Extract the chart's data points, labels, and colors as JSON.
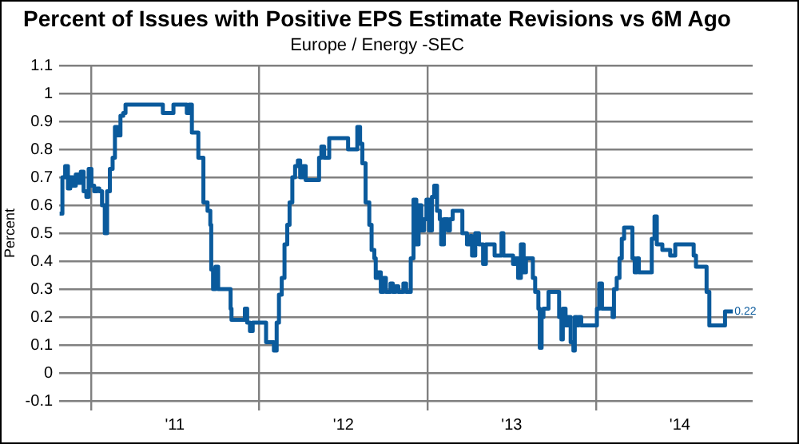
{
  "chart_data": {
    "type": "step",
    "title": "Percent of Issues with Positive EPS Estimate Revisions vs 6M Ago",
    "subtitle": "Europe / Energy -SEC",
    "ylabel": "Percent",
    "x": [
      "2010-10-25",
      "2010-10-31",
      "2010-11-06",
      "2010-11-12",
      "2010-11-17",
      "2010-11-23",
      "2010-11-29",
      "2010-12-05",
      "2010-12-10",
      "2010-12-16",
      "2010-12-22",
      "2010-12-27",
      "2011-01-02",
      "2011-01-08",
      "2011-01-14",
      "2011-01-19",
      "2011-01-25",
      "2011-01-31",
      "2011-02-05",
      "2011-02-11",
      "2011-02-17",
      "2011-02-22",
      "2011-02-28",
      "2011-03-06",
      "2011-03-12",
      "2011-03-17",
      "2011-05-31",
      "2011-06-06",
      "2011-06-23",
      "2011-06-29",
      "2011-07-22",
      "2011-07-28",
      "2011-08-02",
      "2011-08-08",
      "2011-08-14",
      "2011-08-22",
      "2011-08-29",
      "2011-09-02",
      "2011-09-11",
      "2011-09-17",
      "2011-09-19",
      "2011-09-23",
      "2011-09-28",
      "2011-10-04",
      "2011-10-27",
      "2011-10-31",
      "2011-11-02",
      "2011-12-01",
      "2011-12-06",
      "2011-12-12",
      "2011-12-18",
      "2012-01-10",
      "2012-01-16",
      "2012-01-30",
      "2012-02-02",
      "2012-02-08",
      "2012-02-13",
      "2012-02-19",
      "2012-02-25",
      "2012-03-02",
      "2012-03-07",
      "2012-03-13",
      "2012-03-19",
      "2012-03-25",
      "2012-03-30",
      "2012-04-05",
      "2012-04-11",
      "2012-05-04",
      "2012-05-10",
      "2012-05-15",
      "2012-05-21",
      "2012-05-27",
      "2012-06-01",
      "2012-07-06",
      "2012-07-12",
      "2012-07-29",
      "2012-08-01",
      "2012-08-07",
      "2012-08-12",
      "2012-08-19",
      "2012-08-27",
      "2012-09-01",
      "2012-09-07",
      "2012-09-10",
      "2012-09-15",
      "2012-09-21",
      "2012-09-27",
      "2012-10-02",
      "2012-10-12",
      "2012-10-17",
      "2012-10-23",
      "2012-10-29",
      "2012-11-09",
      "2012-11-15",
      "2012-11-20",
      "2012-11-25",
      "2012-12-01",
      "2012-12-07",
      "2012-12-12",
      "2012-12-18",
      "2012-12-24",
      "2012-12-29",
      "2013-01-04",
      "2013-01-10",
      "2013-01-15",
      "2013-01-21",
      "2013-01-27",
      "2013-01-30",
      "2013-02-05",
      "2013-02-13",
      "2013-02-18",
      "2013-02-24",
      "2013-03-13",
      "2013-03-17",
      "2013-03-22",
      "2013-03-27",
      "2013-04-03",
      "2013-04-07",
      "2013-04-14",
      "2013-04-22",
      "2013-04-28",
      "2013-05-01",
      "2013-05-07",
      "2013-05-20",
      "2013-05-26",
      "2013-06-06",
      "2013-06-10",
      "2013-06-14",
      "2013-06-29",
      "2013-07-05",
      "2013-07-11",
      "2013-07-16",
      "2013-07-22",
      "2013-07-28",
      "2013-08-02",
      "2013-08-14",
      "2013-08-17",
      "2013-08-22",
      "2013-08-29",
      "2013-09-01",
      "2013-09-05",
      "2013-09-09",
      "2013-09-13",
      "2013-09-20",
      "2013-10-10",
      "2013-10-13",
      "2013-10-18",
      "2013-10-21",
      "2013-10-27",
      "2013-11-01",
      "2013-11-07",
      "2013-11-13",
      "2013-11-16",
      "2013-11-21",
      "2013-11-24",
      "2013-11-30",
      "2013-12-28",
      "2014-01-03",
      "2014-01-08",
      "2014-01-14",
      "2014-01-20",
      "2014-02-06",
      "2014-02-09",
      "2014-02-15",
      "2014-02-21",
      "2014-02-26",
      "2014-03-03",
      "2014-03-18",
      "2014-03-21",
      "2014-03-26",
      "2014-03-31",
      "2014-04-04",
      "2014-04-26",
      "2014-05-02",
      "2014-05-08",
      "2014-05-13",
      "2014-05-19",
      "2014-05-25",
      "2014-06-05",
      "2014-06-11",
      "2014-06-22",
      "2014-07-26",
      "2014-08-01",
      "2014-08-06",
      "2014-08-23",
      "2014-08-29",
      "2014-09-04",
      "2014-10-02",
      "2014-10-08",
      "2014-10-25"
    ],
    "series": [
      {
        "color": "#0a5a9c",
        "values": [
          0.57,
          0.7,
          0.74,
          0.66,
          0.7,
          0.67,
          0.71,
          0.68,
          0.72,
          0.65,
          0.63,
          0.73,
          0.67,
          0.65,
          0.66,
          0.65,
          0.6,
          0.5,
          0.65,
          0.73,
          0.77,
          0.88,
          0.85,
          0.92,
          0.93,
          0.96,
          0.96,
          0.93,
          0.93,
          0.96,
          0.96,
          0.93,
          0.96,
          0.86,
          0.86,
          0.77,
          0.77,
          0.61,
          0.58,
          0.53,
          0.37,
          0.3,
          0.38,
          0.3,
          0.3,
          0.23,
          0.19,
          0.23,
          0.18,
          0.15,
          0.18,
          0.18,
          0.11,
          0.11,
          0.08,
          0.18,
          0.28,
          0.34,
          0.46,
          0.53,
          0.61,
          0.7,
          0.74,
          0.76,
          0.7,
          0.74,
          0.69,
          0.69,
          0.77,
          0.81,
          0.77,
          0.77,
          0.84,
          0.84,
          0.8,
          0.8,
          0.88,
          0.82,
          0.75,
          0.61,
          0.53,
          0.44,
          0.41,
          0.34,
          0.36,
          0.29,
          0.34,
          0.29,
          0.32,
          0.29,
          0.31,
          0.29,
          0.32,
          0.29,
          0.29,
          0.41,
          0.62,
          0.46,
          0.6,
          0.51,
          0.55,
          0.62,
          0.51,
          0.63,
          0.67,
          0.58,
          0.55,
          0.46,
          0.55,
          0.51,
          0.55,
          0.58,
          0.58,
          0.5,
          0.5,
          0.46,
          0.49,
          0.42,
          0.5,
          0.46,
          0.46,
          0.39,
          0.46,
          0.46,
          0.42,
          0.42,
          0.5,
          0.42,
          0.42,
          0.39,
          0.41,
          0.34,
          0.46,
          0.36,
          0.41,
          0.41,
          0.34,
          0.29,
          0.23,
          0.09,
          0.2,
          0.23,
          0.23,
          0.29,
          0.29,
          0.2,
          0.12,
          0.23,
          0.17,
          0.2,
          0.11,
          0.08,
          0.2,
          0.17,
          0.2,
          0.17,
          0.17,
          0.23,
          0.32,
          0.23,
          0.23,
          0.2,
          0.3,
          0.34,
          0.41,
          0.48,
          0.52,
          0.52,
          0.41,
          0.36,
          0.41,
          0.36,
          0.36,
          0.48,
          0.56,
          0.46,
          0.46,
          0.44,
          0.44,
          0.42,
          0.46,
          0.46,
          0.42,
          0.38,
          0.38,
          0.29,
          0.17,
          0.17,
          0.22,
          0.22
        ],
        "value_labels": [
          null,
          null,
          null,
          null,
          null,
          null,
          null,
          null,
          null,
          null,
          null,
          null,
          null,
          null,
          null,
          null,
          null,
          null,
          null,
          null,
          null,
          null,
          null,
          null,
          null,
          null,
          null,
          null,
          null,
          null,
          null,
          null,
          null,
          null,
          null,
          null,
          null,
          null,
          null,
          null,
          null,
          null,
          null,
          null,
          null,
          null,
          null,
          null,
          null,
          null,
          null,
          null,
          null,
          null,
          null,
          null,
          null,
          null,
          null,
          null,
          null,
          null,
          null,
          null,
          null,
          null,
          null,
          null,
          null,
          null,
          null,
          null,
          null,
          null,
          null,
          null,
          null,
          null,
          null,
          null,
          null,
          null,
          null,
          null,
          null,
          null,
          null,
          null,
          null,
          null,
          null,
          null,
          null,
          null,
          null,
          null,
          null,
          null,
          null,
          null,
          null,
          null,
          null,
          null,
          null,
          null,
          null,
          null,
          null,
          null,
          null,
          null,
          null,
          null,
          null,
          null,
          null,
          null,
          null,
          null,
          null,
          null,
          null,
          null,
          null,
          null,
          null,
          null,
          null,
          null,
          null,
          null,
          null,
          null,
          null,
          null,
          null,
          null,
          null,
          null,
          null,
          null,
          null,
          null,
          null,
          null,
          null,
          null,
          null,
          null,
          null,
          null,
          null,
          null,
          null,
          null,
          null,
          null,
          null,
          null,
          null,
          null,
          null,
          null,
          null,
          null,
          null,
          null,
          null,
          null,
          null,
          null,
          null,
          null,
          null,
          null,
          null,
          null,
          null,
          null,
          null,
          null,
          null,
          null,
          null,
          null,
          null,
          null,
          null,
          "0.22"
        ]
      }
    ],
    "xlim": [
      "2010-10-24",
      "2014-12-07"
    ],
    "xticks": [
      {
        "value": "2011-01-01",
        "label": null
      },
      {
        "value": "2011-07-02",
        "label": "'11"
      },
      {
        "value": "2012-01-01",
        "label": null
      },
      {
        "value": "2012-07-02",
        "label": "'12"
      },
      {
        "value": "2013-01-01",
        "label": null
      },
      {
        "value": "2013-07-02",
        "label": "'13"
      },
      {
        "value": "2014-01-01",
        "label": null
      },
      {
        "value": "2014-07-02",
        "label": "'14"
      }
    ],
    "ylim": [
      -0.1,
      1.1
    ],
    "yticks": [
      -0.1,
      0,
      0.1,
      0.2,
      0.3,
      0.4,
      0.5,
      0.6,
      0.7,
      0.8,
      0.9,
      1,
      1.1
    ],
    "grid": true,
    "legend": false,
    "marker": "none",
    "line_style": "solid"
  }
}
